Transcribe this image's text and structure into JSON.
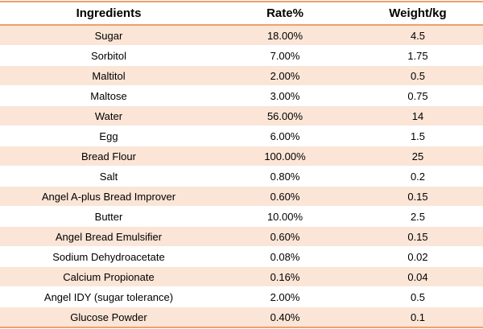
{
  "colors": {
    "border_orange": "#efa06a",
    "band_peach": "#fbe5d6",
    "header_background": "#ffffff",
    "text": "#000000"
  },
  "table": {
    "headers": [
      "Ingredients",
      "Rate%",
      "Weight/kg"
    ],
    "rows": [
      {
        "ingredient": "Sugar",
        "rate": "18.00%",
        "weight": "4.5"
      },
      {
        "ingredient": "Sorbitol",
        "rate": "7.00%",
        "weight": "1.75"
      },
      {
        "ingredient": "Maltitol",
        "rate": "2.00%",
        "weight": "0.5"
      },
      {
        "ingredient": "Maltose",
        "rate": "3.00%",
        "weight": "0.75"
      },
      {
        "ingredient": "Water",
        "rate": "56.00%",
        "weight": "14"
      },
      {
        "ingredient": "Egg",
        "rate": "6.00%",
        "weight": "1.5"
      },
      {
        "ingredient": "Bread Flour",
        "rate": "100.00%",
        "weight": "25"
      },
      {
        "ingredient": "Salt",
        "rate": "0.80%",
        "weight": "0.2"
      },
      {
        "ingredient": "Angel A-plus Bread Improver",
        "rate": "0.60%",
        "weight": "0.15"
      },
      {
        "ingredient": "Butter",
        "rate": "10.00%",
        "weight": "2.5"
      },
      {
        "ingredient": "Angel Bread Emulsifier",
        "rate": "0.60%",
        "weight": "0.15"
      },
      {
        "ingredient": "Sodium Dehydroacetate",
        "rate": "0.08%",
        "weight": "0.02"
      },
      {
        "ingredient": "Calcium Propionate",
        "rate": "0.16%",
        "weight": "0.04"
      },
      {
        "ingredient": "Angel IDY (sugar tolerance)",
        "rate": "2.00%",
        "weight": "0.5"
      },
      {
        "ingredient": "Glucose Powder",
        "rate": "0.40%",
        "weight": "0.1"
      }
    ]
  }
}
